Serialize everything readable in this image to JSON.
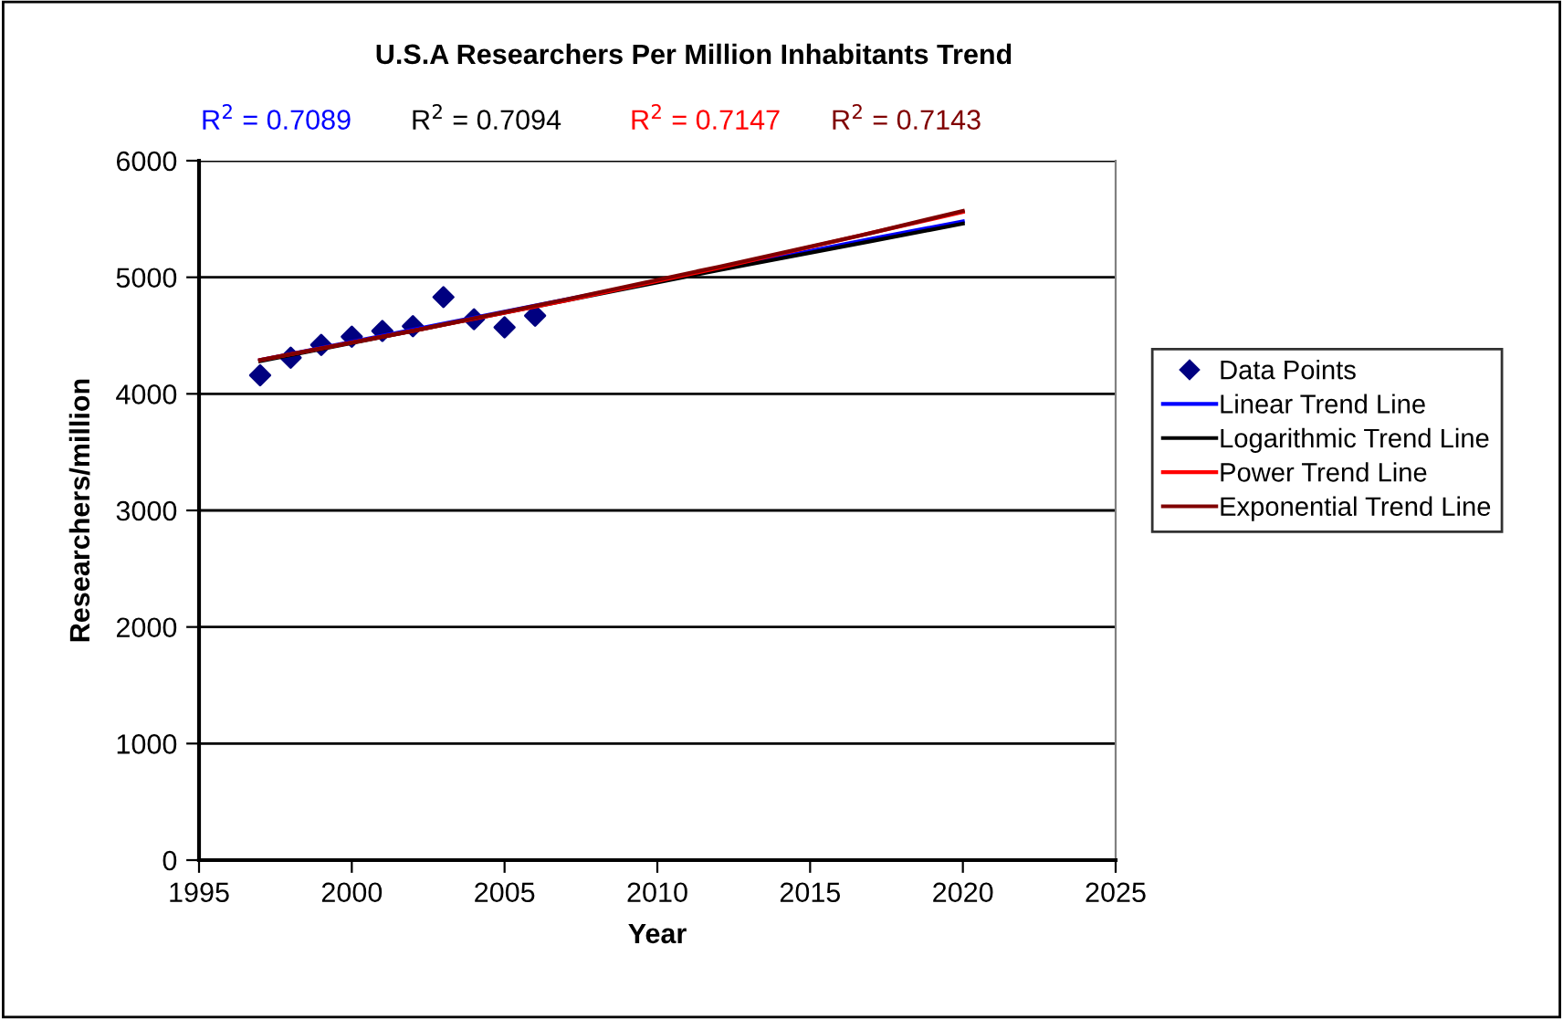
{
  "chart_data": {
    "type": "line",
    "title": "U.S.A Researchers Per Million Inhabitants Trend",
    "xlabel": "Year",
    "ylabel": "Researchers/million",
    "annotations": [
      "R$^{2}$ = 0.7089",
      "R$^{2}$ = 0.7094",
      "R$^{2}$ = 0.7147",
      "R$^{2}$ = 0.7143"
    ],
    "series": [
      {
        "name": "Data Points",
        "type": "scatter",
        "marker": "diamond",
        "color": "#000080",
        "x": [
          1997,
          1998,
          1999,
          2000,
          2001,
          2002,
          2003,
          2004,
          2005,
          2006
        ],
        "values": [
          4160,
          4310,
          4420,
          4490,
          4540,
          4580,
          4830,
          4640,
          4570,
          4670
        ]
      },
      {
        "name": "Linear Trend Line",
        "color": "#0000ff",
        "x": [
          1997,
          2002,
          2007,
          2012,
          2017,
          2020
        ],
        "values": [
          4290,
          4550,
          4810,
          5070,
          5330,
          5480
        ]
      },
      {
        "name": "Logarithmic Trend Line",
        "color": "#000000",
        "x": [
          1997,
          2002,
          2007,
          2012,
          2017,
          2020
        ],
        "values": [
          4280,
          4540,
          4800,
          5060,
          5310,
          5460
        ]
      },
      {
        "name": "Power Trend Line",
        "color": "#ff0000",
        "x": [
          1997,
          2002,
          2007,
          2012,
          2017,
          2020
        ],
        "values": [
          4290,
          4540,
          4800,
          5080,
          5380,
          5560
        ]
      },
      {
        "name": "Exponential Trend Line",
        "color": "#800000",
        "x": [
          1997,
          2002,
          2007,
          2012,
          2017,
          2020
        ],
        "values": [
          4290,
          4540,
          4810,
          5090,
          5380,
          5570
        ]
      }
    ],
    "xlim": [
      1995,
      2025
    ],
    "xticks": [
      1995,
      2000,
      2005,
      2010,
      2015,
      2020,
      2025
    ],
    "ylim": [
      0,
      6000
    ],
    "yticks": [
      0,
      1000,
      2000,
      3000,
      4000,
      5000,
      6000
    ],
    "grid": "y",
    "legend": "right",
    "line_style": "solid"
  }
}
